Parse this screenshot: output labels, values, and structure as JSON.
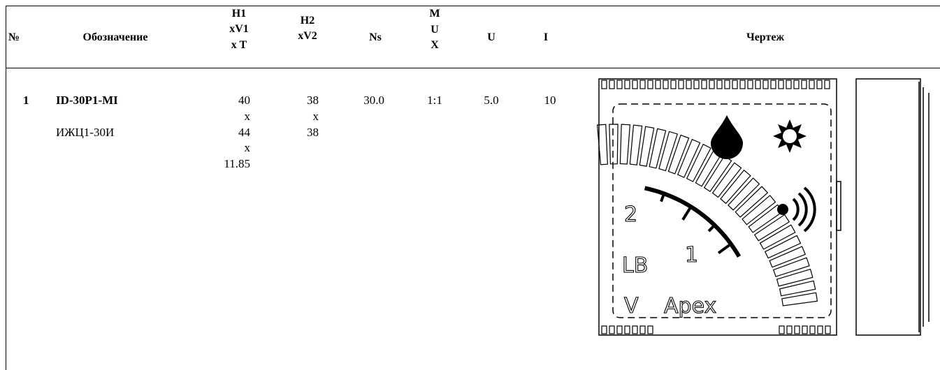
{
  "table": {
    "header": [
      "№",
      "Обозначение",
      [
        "H1",
        "xV1",
        "x T"
      ],
      [
        "H2",
        "xV2"
      ],
      "Ns",
      [
        "M",
        "U",
        "X"
      ],
      "U",
      "I",
      "Чертеж"
    ],
    "rows": [
      [
        "1",
        [
          "ID-30P1-MI",
          "ИЖЦ1-30И"
        ],
        [
          "40",
          "x",
          "44",
          "x",
          "11.85"
        ],
        [
          "38",
          "x",
          "38"
        ],
        "30.0",
        "1:1",
        "5.0",
        "10"
      ]
    ]
  },
  "drawing": {
    "labels": [
      "2",
      "LB",
      "1",
      "V",
      "Apex"
    ]
  }
}
